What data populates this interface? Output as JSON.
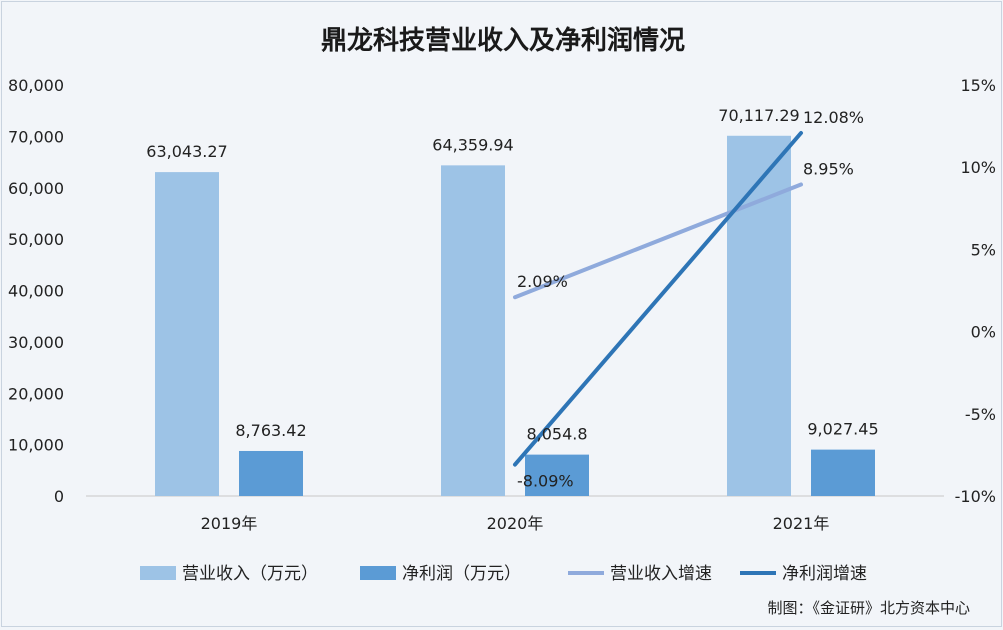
{
  "chart_data": {
    "type": "bar",
    "title": "鼎龙科技营业收入及净利润情况",
    "categories": [
      "2019年",
      "2020年",
      "2021年"
    ],
    "y_left": {
      "lim": [
        0,
        80000
      ],
      "ticks": [
        0,
        10000,
        20000,
        30000,
        40000,
        50000,
        60000,
        70000,
        80000
      ],
      "tick_labels": [
        "0",
        "10,000",
        "20,000",
        "30,000",
        "40,000",
        "50,000",
        "60,000",
        "70,000",
        "80,000"
      ]
    },
    "y_right": {
      "lim": [
        -10,
        15
      ],
      "ticks": [
        -10,
        -5,
        0,
        5,
        10,
        15
      ],
      "tick_labels": [
        "-10%",
        "-5%",
        "0%",
        "5%",
        "10%",
        "15%"
      ]
    },
    "series": [
      {
        "name": "营业收入（万元）",
        "kind": "bar",
        "axis": "left",
        "color": "#9dc3e6",
        "values": [
          63043.27,
          64359.94,
          70117.29
        ],
        "labels": [
          "63,043.27",
          "64,359.94",
          "70,117.29"
        ]
      },
      {
        "name": "净利润（万元）",
        "kind": "bar",
        "axis": "left",
        "color": "#5b9bd5",
        "values": [
          8763.42,
          8054.8,
          9027.45
        ],
        "labels": [
          "8,763.42",
          "8,054.8",
          "9,027.45"
        ]
      },
      {
        "name": "营业收入增速",
        "kind": "line",
        "axis": "right",
        "color": "#8faadc",
        "values": [
          null,
          2.09,
          8.95
        ],
        "labels": [
          "",
          "2.09%",
          "8.95%"
        ]
      },
      {
        "name": "净利润增速",
        "kind": "line",
        "axis": "right",
        "color": "#2e75b6",
        "values": [
          null,
          -8.09,
          12.08
        ],
        "labels": [
          "",
          "-8.09%",
          "12.08%"
        ]
      }
    ],
    "legend_position": "bottom",
    "grid": false
  },
  "credit": "制图：《金证研》北方资本中心"
}
